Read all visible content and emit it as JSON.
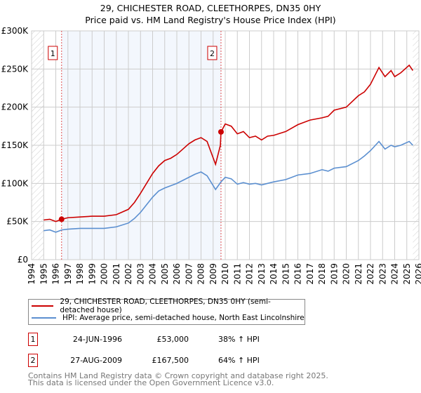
{
  "title": "29, CHICHESTER ROAD, CLEETHORPES, DN35 0HY",
  "subtitle": "Price paid vs. HM Land Registry's House Price Index (HPI)",
  "chart_data": {
    "type": "line",
    "title": "29, CHICHESTER ROAD, CLEETHORPES, DN35 0HY",
    "subtitle": "Price paid vs. HM Land Registry's House Price Index (HPI)",
    "xlim": [
      1994,
      2026
    ],
    "ylim": [
      0,
      300000
    ],
    "x_ticks": [
      "1994",
      "1995",
      "1996",
      "1997",
      "1998",
      "1999",
      "2000",
      "2001",
      "2002",
      "2003",
      "2004",
      "2005",
      "2006",
      "2007",
      "2008",
      "2009",
      "2010",
      "2011",
      "2012",
      "2013",
      "2014",
      "2015",
      "2016",
      "2017",
      "2018",
      "2019",
      "2020",
      "2021",
      "2022",
      "2023",
      "2024",
      "2025",
      "2026"
    ],
    "y_ticks": [
      {
        "v": 0,
        "l": "£0"
      },
      {
        "v": 50000,
        "l": "£50K"
      },
      {
        "v": 100000,
        "l": "£100K"
      },
      {
        "v": 150000,
        "l": "£150K"
      },
      {
        "v": 200000,
        "l": "£200K"
      },
      {
        "v": 250000,
        "l": "£250K"
      },
      {
        "v": 300000,
        "l": "£300K"
      }
    ],
    "grid": true,
    "series": [
      {
        "name": "29, CHICHESTER ROAD, CLEETHORPES, DN35 0HY (semi-detached house)",
        "color": "#cc0000",
        "x": [
          1995,
          1995.5,
          1996,
          1996.5,
          1997,
          1998,
          1999,
          2000,
          2001,
          2002,
          2002.5,
          2003,
          2003.5,
          2004,
          2004.5,
          2005,
          2005.5,
          2006,
          2006.5,
          2007,
          2007.5,
          2008,
          2008.5,
          2009.2,
          2009.6,
          2009.65,
          2010,
          2010.5,
          2011,
          2011.5,
          2012,
          2012.5,
          2013,
          2013.5,
          2014,
          2015,
          2016,
          2017,
          2018,
          2018.5,
          2019,
          2020,
          2021,
          2021.5,
          2022,
          2022.7,
          2023.2,
          2023.7,
          2024,
          2024.5,
          2025.2,
          2025.5
        ],
        "values": [
          52000,
          53000,
          50000,
          53000,
          55000,
          56000,
          57000,
          57000,
          59000,
          66000,
          75000,
          87000,
          100000,
          113000,
          123000,
          130000,
          133000,
          138000,
          145000,
          152000,
          157000,
          160000,
          155000,
          125000,
          150000,
          167500,
          178000,
          175000,
          165000,
          168000,
          160000,
          162000,
          157000,
          162000,
          163000,
          168000,
          177000,
          183000,
          186000,
          188000,
          196000,
          200000,
          215000,
          220000,
          230000,
          252000,
          240000,
          248000,
          240000,
          245000,
          255000,
          248000
        ]
      },
      {
        "name": "HPI: Average price, semi-detached house, North East Lincolnshire",
        "color": "#5b8fd0",
        "x": [
          1995,
          1995.5,
          1996,
          1996.5,
          1997,
          1998,
          1999,
          2000,
          2001,
          2002,
          2002.5,
          2003,
          2003.5,
          2004,
          2004.5,
          2005,
          2005.5,
          2006,
          2006.5,
          2007,
          2007.5,
          2008,
          2008.5,
          2009.2,
          2009.65,
          2010,
          2010.5,
          2011,
          2011.5,
          2012,
          2012.5,
          2013,
          2013.5,
          2014,
          2015,
          2016,
          2017,
          2018,
          2018.5,
          2019,
          2020,
          2021,
          2021.5,
          2022,
          2022.7,
          2023.2,
          2023.7,
          2024,
          2024.5,
          2025.2,
          2025.5
        ],
        "values": [
          38000,
          39000,
          36000,
          39000,
          40000,
          41000,
          41000,
          41000,
          43000,
          48000,
          54000,
          62000,
          72000,
          82000,
          90000,
          94000,
          97000,
          100000,
          104000,
          108000,
          112000,
          115000,
          110000,
          92000,
          102000,
          108000,
          106000,
          99000,
          101000,
          99000,
          100000,
          98000,
          100000,
          102000,
          105000,
          111000,
          113000,
          118000,
          116000,
          120000,
          122000,
          130000,
          136000,
          143000,
          155000,
          145000,
          150000,
          148000,
          150000,
          155000,
          150000
        ]
      }
    ],
    "sales": [
      {
        "n": "1",
        "x": 1996.48,
        "y": 53000
      },
      {
        "n": "2",
        "x": 2009.65,
        "y": 167500
      }
    ]
  },
  "legend": [
    "29, CHICHESTER ROAD, CLEETHORPES, DN35 0HY (semi-detached house)",
    "HPI: Average price, semi-detached house, North East Lincolnshire"
  ],
  "transactions": [
    {
      "n": "1",
      "date": "24-JUN-1996",
      "price": "£53,000",
      "hpi": "38% ↑ HPI"
    },
    {
      "n": "2",
      "date": "27-AUG-2009",
      "price": "£167,500",
      "hpi": "64% ↑ HPI"
    }
  ],
  "footer": [
    "Contains HM Land Registry data © Crown copyright and database right 2025.",
    "This data is licensed under the Open Government Licence v3.0."
  ]
}
